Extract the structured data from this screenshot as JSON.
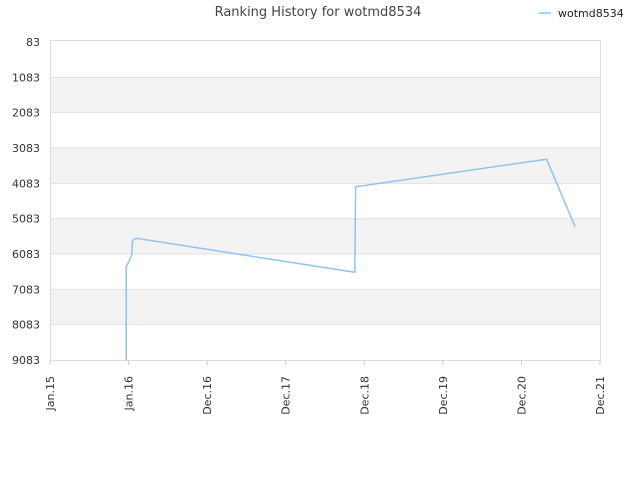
{
  "chart_data": {
    "type": "line",
    "title": "Ranking History for wotmd8534",
    "xlabel": "",
    "ylabel": "",
    "x_ticks": [
      "Jan.15",
      "Jan.16",
      "Dec.16",
      "Dec.17",
      "Dec.18",
      "Dec.19",
      "Dec.20",
      "Dec.21"
    ],
    "y_ticks": [
      "83",
      "1083",
      "2083",
      "3083",
      "4083",
      "5083",
      "6083",
      "7083",
      "8083",
      "9083"
    ],
    "ylim": [
      83,
      9083
    ],
    "y_inverted": true,
    "grid": "horizontal bands",
    "legend_position": "top-right",
    "series": [
      {
        "name": "wotmd8534",
        "color": "#90c3f0",
        "points": [
          {
            "x": 0.97,
            "y": 9083
          },
          {
            "x": 0.97,
            "y": 6450
          },
          {
            "x": 1.04,
            "y": 6120
          },
          {
            "x": 1.05,
            "y": 5700
          },
          {
            "x": 1.1,
            "y": 5640
          },
          {
            "x": 3.88,
            "y": 6600
          },
          {
            "x": 3.89,
            "y": 4180
          },
          {
            "x": 6.32,
            "y": 3400
          },
          {
            "x": 6.68,
            "y": 5300
          }
        ]
      }
    ]
  }
}
